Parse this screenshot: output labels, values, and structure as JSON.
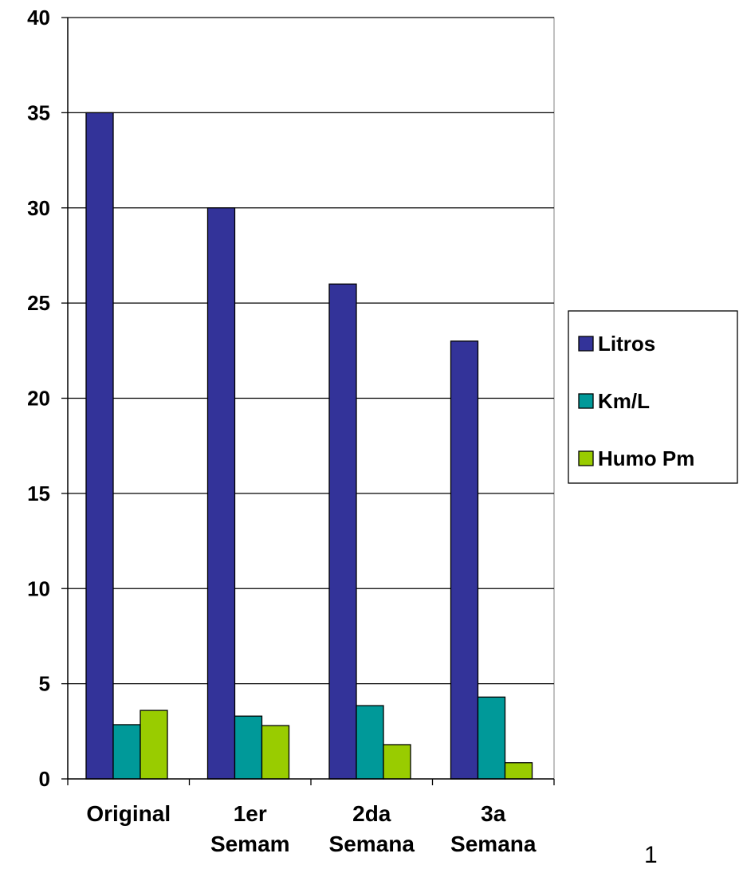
{
  "chart_data": {
    "type": "bar",
    "categories": [
      [
        "Original"
      ],
      [
        "1er",
        "Semam"
      ],
      [
        "2da",
        "Semana"
      ],
      [
        "3a",
        "Semana"
      ]
    ],
    "series": [
      {
        "name": "Litros",
        "color": "#333399",
        "values": [
          35,
          30,
          26,
          23
        ]
      },
      {
        "name": "Km/L",
        "color": "#009999",
        "values": [
          2.85,
          3.3,
          3.85,
          4.3
        ]
      },
      {
        "name": "Humo Pm",
        "color": "#99CC00",
        "values": [
          3.6,
          2.8,
          1.8,
          0.85
        ]
      }
    ],
    "ylim": [
      0,
      40
    ],
    "yticks": [
      "0",
      "5",
      "10",
      "15",
      "20",
      "25",
      "30",
      "35",
      "40"
    ],
    "grid": true,
    "legend": "right",
    "title": "",
    "xlabel": "",
    "ylabel": ""
  },
  "page_number": "1"
}
